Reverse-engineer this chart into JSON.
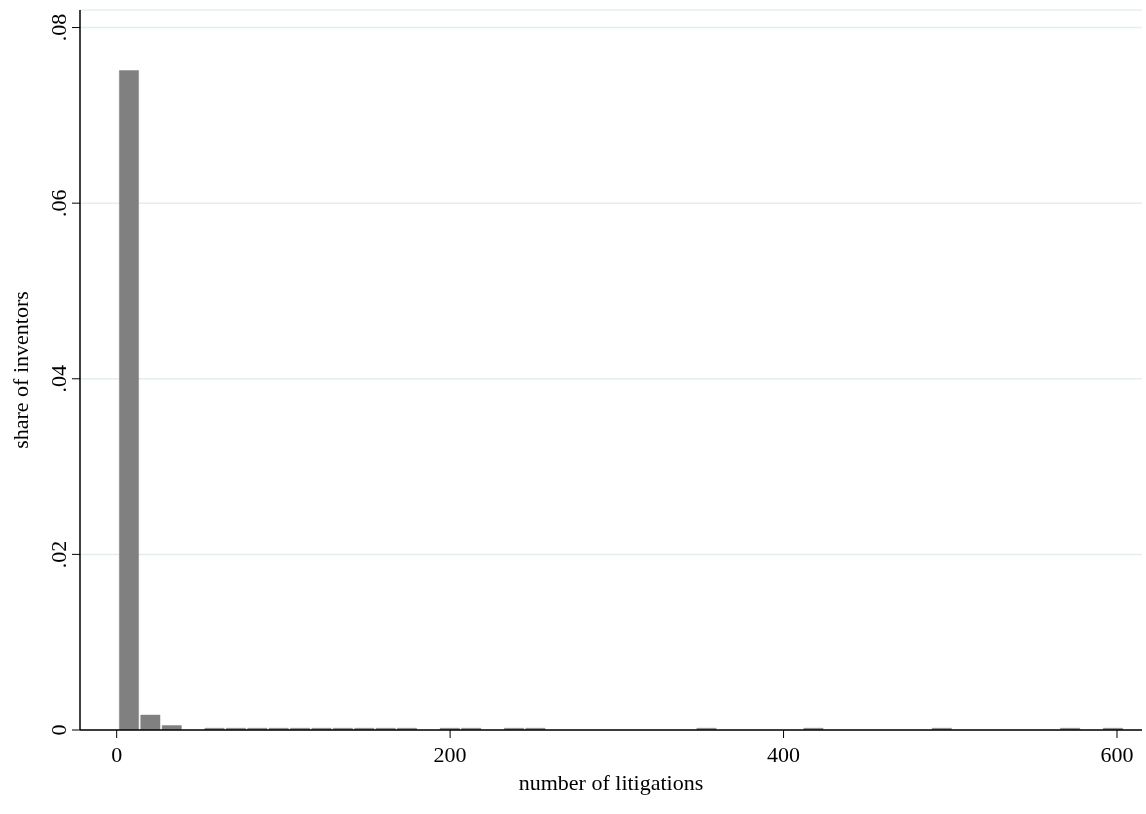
{
  "chart_data": {
    "type": "histogram",
    "xlabel": "number of litigations",
    "ylabel": "share of inventors",
    "bins": [
      1,
      13.83,
      26.66,
      39.49,
      52.32,
      65.15,
      77.98,
      90.81,
      103.64,
      116.47,
      129.3,
      142.13,
      154.96,
      167.79,
      180.62,
      193.45,
      206.28,
      219.11,
      231.94,
      244.77,
      257.6,
      270.43,
      283.26,
      296.09,
      308.92,
      321.75,
      334.58,
      347.41,
      360.24,
      373.07,
      385.9,
      398.73,
      411.56,
      424.39,
      437.22,
      450.05,
      462.88,
      475.71,
      488.54,
      501.37,
      514.2,
      527.03,
      539.86,
      552.69,
      565.52,
      578.35,
      591.18,
      604.01
    ],
    "values": [
      0.0751,
      0.0017,
      0.0005,
      0,
      0.0002,
      0.0002,
      0.0002,
      0.0002,
      0.0002,
      0.0002,
      0.0002,
      0.0002,
      0.0002,
      0.0002,
      0,
      0.0002,
      0.0002,
      0,
      0.0002,
      0.0002,
      0,
      0,
      0,
      0,
      0,
      0,
      0,
      0.0002,
      0,
      0,
      0,
      0,
      0.0002,
      0,
      0,
      0,
      0,
      0,
      0.0002,
      0,
      0,
      0,
      0,
      0,
      0.0002,
      0,
      0.0002
    ],
    "color": "#808080",
    "xlim": [
      -22,
      615
    ],
    "xticks": [
      0,
      200,
      400,
      600
    ],
    "ylim": [
      0,
      0.082
    ],
    "yticks": [
      0,
      {
        "value": 0.02,
        "label": ".02"
      },
      {
        "value": 0.04,
        "label": ".04"
      },
      {
        "value": 0.06,
        "label": ".06"
      },
      {
        "value": 0.08,
        "label": ".08"
      }
    ],
    "grid": "y"
  }
}
